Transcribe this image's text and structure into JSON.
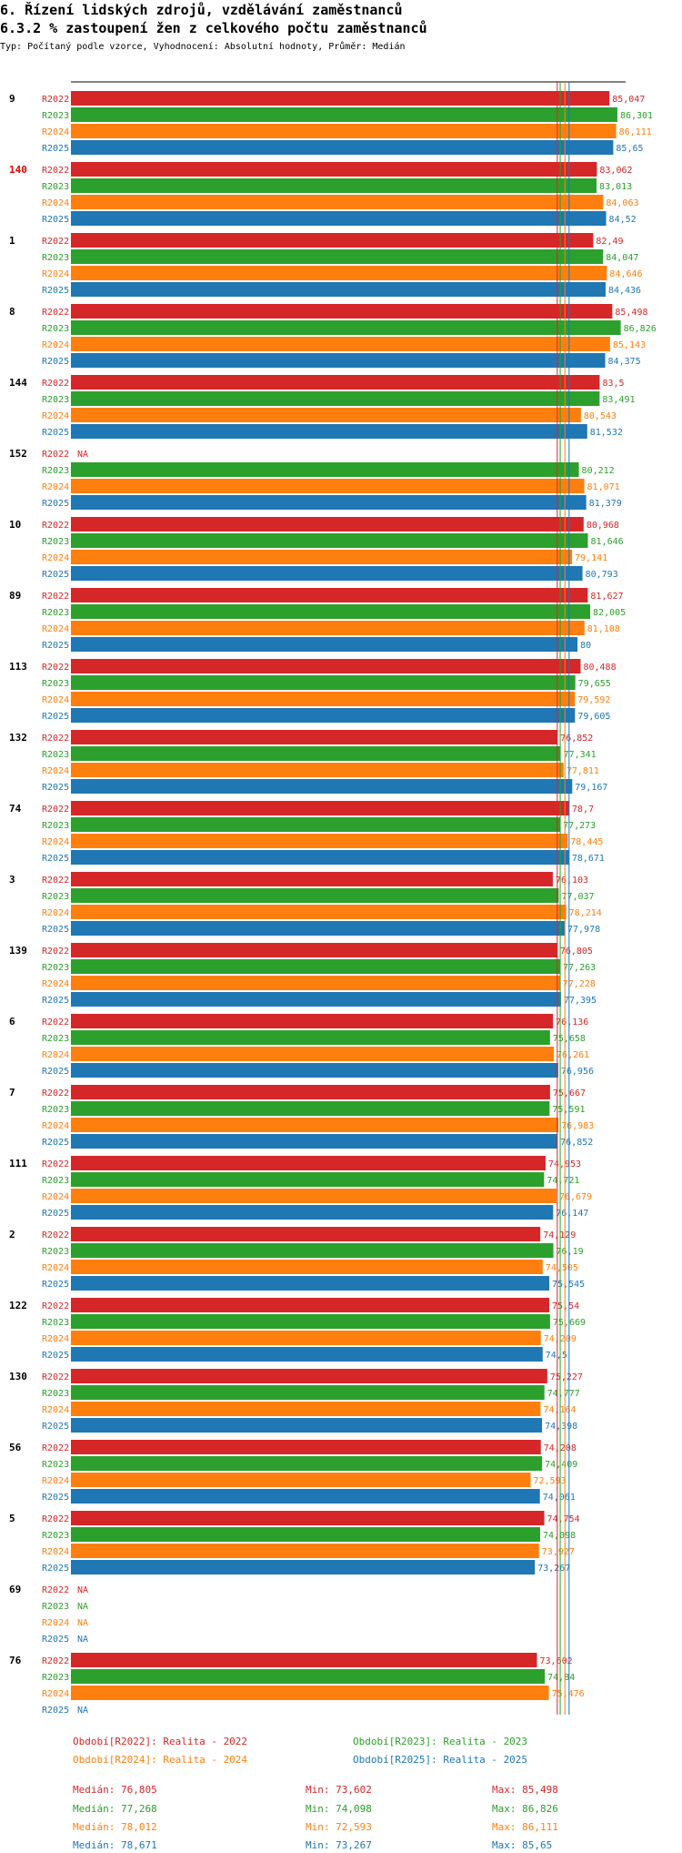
{
  "header": {
    "title": "6. Řízení lidských zdrojů, vzdělávání zaměstnanců",
    "subtitle": "6.3.2 % zastoupení žen z celkového počtu zaměstnanců",
    "info": "Typ: Počítaný podle vzorce, Vyhodnocení: Absolutní hodnoty, Průměr: Medián"
  },
  "colors": {
    "R2022": "#d62728",
    "R2023": "#2ca02c",
    "R2024": "#ff7f0e",
    "R2025": "#1f77b4"
  },
  "chart_data": {
    "type": "bar",
    "orientation": "horizontal",
    "series_names": [
      "R2022",
      "R2023",
      "R2024",
      "R2025"
    ],
    "highlight_group": "140",
    "na_label": "NA",
    "groups": [
      {
        "label": "9",
        "values": [
          85.047,
          86.301,
          86.111,
          85.65
        ]
      },
      {
        "label": "140",
        "values": [
          83.062,
          83.013,
          84.063,
          84.52
        ]
      },
      {
        "label": "1",
        "values": [
          82.49,
          84.047,
          84.646,
          84.436
        ]
      },
      {
        "label": "8",
        "values": [
          85.498,
          86.826,
          85.143,
          84.375
        ]
      },
      {
        "label": "144",
        "values": [
          83.5,
          83.491,
          80.543,
          81.532
        ]
      },
      {
        "label": "152",
        "values": [
          null,
          80.212,
          81.071,
          81.379
        ]
      },
      {
        "label": "10",
        "values": [
          80.968,
          81.646,
          79.141,
          80.793
        ]
      },
      {
        "label": "89",
        "values": [
          81.627,
          82.005,
          81.108,
          80
        ]
      },
      {
        "label": "113",
        "values": [
          80.488,
          79.655,
          79.592,
          79.605
        ]
      },
      {
        "label": "132",
        "values": [
          76.852,
          77.341,
          77.811,
          79.167
        ]
      },
      {
        "label": "74",
        "values": [
          78.7,
          77.273,
          78.445,
          78.671
        ]
      },
      {
        "label": "3",
        "values": [
          76.103,
          77.037,
          78.214,
          77.978
        ]
      },
      {
        "label": "139",
        "values": [
          76.805,
          77.263,
          77.228,
          77.395
        ]
      },
      {
        "label": "6",
        "values": [
          76.136,
          75.658,
          76.261,
          76.956
        ]
      },
      {
        "label": "7",
        "values": [
          75.667,
          75.591,
          76.983,
          76.852
        ]
      },
      {
        "label": "111",
        "values": [
          74.953,
          74.721,
          76.679,
          76.147
        ]
      },
      {
        "label": "2",
        "values": [
          74.129,
          76.19,
          74.505,
          75.545
        ]
      },
      {
        "label": "122",
        "values": [
          75.54,
          75.669,
          74.209,
          74.5
        ]
      },
      {
        "label": "130",
        "values": [
          75.227,
          74.777,
          74.164,
          74.398
        ]
      },
      {
        "label": "56",
        "values": [
          74.208,
          74.409,
          72.593,
          74.061
        ]
      },
      {
        "label": "5",
        "values": [
          74.754,
          74.098,
          73.927,
          73.267
        ]
      },
      {
        "label": "69",
        "values": [
          null,
          null,
          null,
          null
        ]
      },
      {
        "label": "76",
        "values": [
          73.602,
          74.84,
          75.476,
          null
        ]
      }
    ],
    "median_lines": [
      76.805,
      77.268,
      78.012,
      78.671
    ],
    "x_axis": {
      "domain": [
        0,
        87.6
      ]
    }
  },
  "legend": {
    "periods": [
      "Období[R2022]: Realita - 2022",
      "Období[R2023]: Realita - 2023",
      "Období[R2024]: Realita - 2024",
      "Období[R2025]: Realita - 2025"
    ],
    "stats": [
      {
        "median": "Medián: 76,805",
        "min": "Min: 73,602",
        "max": "Max: 85,498"
      },
      {
        "median": "Medián: 77,268",
        "min": "Min: 74,098",
        "max": "Max: 86,826"
      },
      {
        "median": "Medián: 78,012",
        "min": "Min: 72,593",
        "max": "Max: 86,111"
      },
      {
        "median": "Medián: 78,671",
        "min": "Min: 73,267",
        "max": "Max: 85,65"
      }
    ]
  }
}
